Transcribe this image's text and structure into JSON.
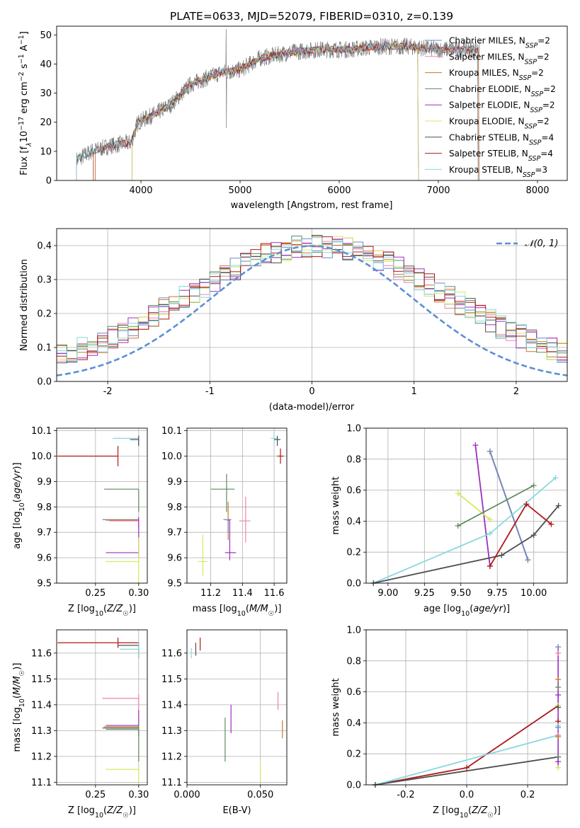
{
  "figure_title": "PLATE=0633, MJD=52079, FIBERID=0310, z=0.139",
  "palette": {
    "Chabrier MILES": "#6a8cc0",
    "Salpeter MILES": "#ef82ad",
    "Kroupa MILES": "#c87a28",
    "Chabrier ELODIE": "#5e8a5e",
    "Salpeter ELODIE": "#9b30c0",
    "Kroupa ELODIE": "#d8e860",
    "Chabrier STELIB": "#4f4f4f",
    "Salpeter STELIB": "#b01818",
    "Kroupa STELIB": "#88d8e0"
  },
  "chart_data": [
    {
      "id": "spectrum",
      "type": "line",
      "title": "PLATE=0633, MJD=52079, FIBERID=0310, z=0.139",
      "xlabel": "wavelength [Angstrom, rest frame]",
      "ylabel": "Flux [f_λ10^-17 erg cm^-2 s^-1 A^-1]",
      "xlim": [
        3150,
        8300
      ],
      "ylim": [
        0,
        53
      ],
      "xticks": [
        4000,
        5000,
        6000,
        7000,
        8000
      ],
      "yticks": [
        0,
        10,
        20,
        30,
        40,
        50
      ],
      "grid": false,
      "legend_position": "top-right",
      "legend": [
        "Chabrier MILES, N_SSP=2",
        "Salpeter MILES, N_SSP=2",
        "Kroupa MILES, N_SSP=2",
        "Chabrier ELODIE, N_SSP=2",
        "Salpeter ELODIE, N_SSP=2",
        "Kroupa ELODIE, N_SSP=2",
        "Chabrier STELIB, N_SSP=4",
        "Salpeter STELIB, N_SSP=4",
        "Kroupa STELIB, N_SSP=3"
      ],
      "continuum": [
        [
          3350,
          7
        ],
        [
          3500,
          10
        ],
        [
          3700,
          12
        ],
        [
          3900,
          13
        ],
        [
          3970,
          20
        ],
        [
          4150,
          23
        ],
        [
          4300,
          26
        ],
        [
          4500,
          33
        ],
        [
          4800,
          37
        ],
        [
          5000,
          38
        ],
        [
          5200,
          42
        ],
        [
          5500,
          44
        ],
        [
          5800,
          45
        ],
        [
          6100,
          45
        ],
        [
          6400,
          46
        ],
        [
          6700,
          46
        ],
        [
          7000,
          45
        ],
        [
          7400,
          45
        ]
      ],
      "model_ranges": {
        "Chabrier MILES": [
          3540,
          7410
        ],
        "Salpeter MILES": [
          3540,
          7410
        ],
        "Kroupa MILES": [
          3540,
          7410
        ],
        "Chabrier ELODIE": [
          3910,
          6800
        ],
        "Salpeter ELODIE": [
          3910,
          6800
        ],
        "Kroupa ELODIE": [
          3910,
          6800
        ],
        "Chabrier STELIB": [
          3350,
          7400
        ],
        "Salpeter STELIB": [
          3520,
          7400
        ],
        "Kroupa STELIB": [
          3350,
          7400
        ]
      }
    },
    {
      "id": "residuals",
      "type": "histogram",
      "xlabel": "(data-model)/error",
      "ylabel": "Normed distribution",
      "xlim": [
        -2.5,
        2.5
      ],
      "ylim": [
        0,
        0.45
      ],
      "xticks": [
        -2,
        -1,
        0,
        1,
        2
      ],
      "yticks": [
        0.0,
        0.1,
        0.2,
        0.3,
        0.4
      ],
      "grid": true,
      "legend": [
        "𝒩(0, 1)"
      ],
      "legend_position": "top-right"
    },
    {
      "id": "age_vs_Z",
      "type": "errorbar",
      "xlabel": "Z [log10(Z/Z☉)]",
      "ylabel": "age [log10(age/yr)]",
      "xlim": [
        0.205,
        0.31
      ],
      "ylim": [
        9.5,
        10.11
      ],
      "xticks": [
        0.25,
        0.3
      ],
      "yticks": [
        9.5,
        9.6,
        9.7,
        9.8,
        9.9,
        10.0,
        10.1
      ],
      "grid": true,
      "points": [
        {
          "model": "Salpeter STELIB",
          "x": 0.276,
          "y": 10.0,
          "xerr": [
            0.206,
            0.276
          ],
          "yerr": [
            9.96,
            10.04
          ]
        },
        {
          "model": "Kroupa STELIB",
          "x": 0.3,
          "y": 10.07,
          "xerr": [
            0.27,
            0.3
          ],
          "yerr": [
            10.04,
            10.08
          ]
        },
        {
          "model": "Chabrier STELIB",
          "x": 0.3,
          "y": 10.065,
          "xerr": [
            0.29,
            0.3
          ],
          "yerr": [
            10.04,
            10.08
          ]
        },
        {
          "model": "Chabrier ELODIE",
          "x": 0.3,
          "y": 9.87,
          "xerr": [
            0.26,
            0.3
          ],
          "yerr": [
            9.78,
            9.87
          ]
        },
        {
          "model": "Chabrier MILES",
          "x": 0.3,
          "y": 9.75,
          "xerr": [
            0.258,
            0.3
          ],
          "yerr": [
            9.72,
            9.75
          ]
        },
        {
          "model": "Kroupa MILES",
          "x": 0.3,
          "y": 9.748,
          "xerr": [
            0.262,
            0.3
          ],
          "yerr": [
            9.72,
            9.75
          ]
        },
        {
          "model": "Salpeter MILES",
          "x": 0.3,
          "y": 9.745,
          "xerr": [
            0.266,
            0.3
          ],
          "yerr": [
            9.72,
            9.75
          ]
        },
        {
          "model": "Salpeter ELODIE",
          "x": 0.3,
          "y": 9.62,
          "xerr": [
            0.262,
            0.3
          ],
          "yerr": [
            9.6,
            9.76
          ]
        },
        {
          "model": "Kroupa ELODIE",
          "x": 0.3,
          "y": 9.585,
          "xerr": [
            0.262,
            0.3
          ],
          "yerr": [
            9.5,
            9.68
          ]
        }
      ]
    },
    {
      "id": "age_vs_mass",
      "type": "errorbar",
      "xlabel": "mass [log10(M/M☉)]",
      "ylabel": "",
      "xlim": [
        11.05,
        11.68
      ],
      "ylim": [
        9.5,
        10.11
      ],
      "xticks": [
        11.2,
        11.4,
        11.6
      ],
      "yticks": [
        9.5,
        9.6,
        9.7,
        9.8,
        9.9,
        10.0,
        10.1
      ],
      "grid": true,
      "points": [
        {
          "model": "Salpeter STELIB",
          "x": 11.64,
          "y": 10.0,
          "xerr": [
            11.62,
            11.66
          ],
          "yerr": [
            9.97,
            10.03
          ]
        },
        {
          "model": "Kroupa STELIB",
          "x": 11.6,
          "y": 10.07,
          "xerr": [
            11.58,
            11.62
          ],
          "yerr": [
            10.05,
            10.09
          ]
        },
        {
          "model": "Chabrier STELIB",
          "x": 11.62,
          "y": 10.065,
          "xerr": [
            11.6,
            11.64
          ],
          "yerr": [
            10.04,
            10.08
          ]
        },
        {
          "model": "Chabrier ELODIE",
          "x": 11.3,
          "y": 9.87,
          "xerr": [
            11.2,
            11.35
          ],
          "yerr": [
            9.78,
            9.93
          ]
        },
        {
          "model": "Kroupa MILES",
          "x": 11.31,
          "y": 9.748,
          "xerr": [
            11.3,
            11.32
          ],
          "yerr": [
            9.67,
            9.82
          ]
        },
        {
          "model": "Chabrier MILES",
          "x": 11.31,
          "y": 9.75,
          "xerr": [
            11.28,
            11.33
          ],
          "yerr": [
            9.7,
            9.75
          ]
        },
        {
          "model": "Salpeter MILES",
          "x": 11.42,
          "y": 9.745,
          "xerr": [
            11.38,
            11.45
          ],
          "yerr": [
            9.66,
            9.84
          ]
        },
        {
          "model": "Salpeter ELODIE",
          "x": 11.32,
          "y": 9.62,
          "xerr": [
            11.29,
            11.36
          ],
          "yerr": [
            9.59,
            9.75
          ]
        },
        {
          "model": "Kroupa ELODIE",
          "x": 11.15,
          "y": 9.585,
          "xerr": [
            11.12,
            11.18
          ],
          "yerr": [
            9.53,
            9.69
          ]
        }
      ]
    },
    {
      "id": "weight_vs_age",
      "type": "line",
      "xlabel": "age [log10(age/yr)]",
      "ylabel": "mass weight",
      "xlim": [
        8.85,
        10.23
      ],
      "ylim": [
        0,
        1.0
      ],
      "xticks": [
        9.0,
        9.25,
        9.5,
        9.75,
        10.0
      ],
      "yticks": [
        0.0,
        0.2,
        0.4,
        0.6,
        0.8,
        1.0
      ],
      "grid": true,
      "series": [
        {
          "model": "Salpeter ELODIE",
          "x": [
            9.6,
            9.7
          ],
          "y": [
            0.89,
            0.11
          ]
        },
        {
          "model": "Kroupa MILES",
          "x": [
            9.7,
            9.96
          ],
          "y": [
            0.85,
            0.15
          ]
        },
        {
          "model": "Salpeter MILES",
          "x": [
            9.7,
            9.96
          ],
          "y": [
            0.85,
            0.15
          ]
        },
        {
          "model": "Chabrier MILES",
          "x": [
            9.7,
            9.96
          ],
          "y": [
            0.85,
            0.15
          ]
        },
        {
          "model": "Kroupa ELODIE",
          "x": [
            9.48,
            9.7
          ],
          "y": [
            0.58,
            0.41
          ]
        },
        {
          "model": "Chabrier ELODIE",
          "x": [
            9.48,
            10.0
          ],
          "y": [
            0.37,
            0.63
          ]
        },
        {
          "model": "Kroupa STELIB",
          "x": [
            8.9,
            9.7,
            10.15
          ],
          "y": [
            0.0,
            0.32,
            0.68
          ]
        },
        {
          "model": "Chabrier STELIB",
          "x": [
            8.9,
            9.78,
            10.0,
            10.17
          ],
          "y": [
            0.0,
            0.18,
            0.31,
            0.5
          ]
        },
        {
          "model": "Salpeter STELIB",
          "x": [
            9.7,
            9.95,
            10.12
          ],
          "y": [
            0.11,
            0.51,
            0.38
          ]
        }
      ]
    },
    {
      "id": "mass_vs_Z",
      "type": "errorbar",
      "xlabel": "Z [log10(Z/Z☉)]",
      "ylabel": "mass [log10(M/M☉)]",
      "xlim": [
        0.205,
        0.31
      ],
      "ylim": [
        11.09,
        11.69
      ],
      "xticks": [
        0.25,
        0.3
      ],
      "yticks": [
        11.1,
        11.2,
        11.3,
        11.4,
        11.5,
        11.6
      ],
      "grid": true,
      "points": [
        {
          "model": "Salpeter STELIB",
          "x": 0.276,
          "y": 11.64,
          "xerr": [
            0.206,
            0.3
          ],
          "yerr": [
            11.62,
            11.66
          ]
        },
        {
          "model": "Chabrier STELIB",
          "x": 0.3,
          "y": 11.63,
          "xerr": [
            0.276,
            0.3
          ],
          "yerr": [
            11.58,
            11.64
          ]
        },
        {
          "model": "Kroupa STELIB",
          "x": 0.3,
          "y": 11.615,
          "xerr": [
            0.278,
            0.3
          ],
          "yerr": [
            11.58,
            11.64
          ]
        },
        {
          "model": "Salpeter MILES",
          "x": 0.3,
          "y": 11.425,
          "xerr": [
            0.258,
            0.3
          ],
          "yerr": [
            11.38,
            11.44
          ]
        },
        {
          "model": "Salpeter ELODIE",
          "x": 0.3,
          "y": 11.32,
          "xerr": [
            0.262,
            0.3
          ],
          "yerr": [
            11.29,
            11.38
          ]
        },
        {
          "model": "Chabrier STELIB",
          "x": 0.3,
          "y": 11.31,
          "xerr": [
            0.258,
            0.3
          ],
          "yerr": [
            11.28,
            11.33
          ]
        },
        {
          "model": "Kroupa MILES",
          "x": 0.3,
          "y": 11.315,
          "xerr": [
            0.26,
            0.3
          ],
          "yerr": [
            11.28,
            11.33
          ]
        },
        {
          "model": "Chabrier ELODIE",
          "x": 0.3,
          "y": 11.305,
          "xerr": [
            0.262,
            0.3
          ],
          "yerr": [
            11.18,
            11.33
          ]
        },
        {
          "model": "Kroupa ELODIE",
          "x": 0.3,
          "y": 11.15,
          "xerr": [
            0.262,
            0.3
          ],
          "yerr": [
            11.1,
            11.16
          ]
        }
      ]
    },
    {
      "id": "mass_vs_ebv",
      "type": "errorbar",
      "xlabel": "E(B-V)",
      "ylabel": "",
      "xlim": [
        0.0,
        0.068
      ],
      "ylim": [
        11.09,
        11.69
      ],
      "xticks": [
        0.0,
        0.05
      ],
      "xticklabels": [
        "0.000",
        "0.050"
      ],
      "yticks": [
        11.1,
        11.2,
        11.3,
        11.4,
        11.5,
        11.6
      ],
      "grid": true,
      "points": [
        {
          "model": "Kroupa STELIB",
          "x": 0.003,
          "y": 11.595,
          "yerr": [
            11.58,
            11.62
          ]
        },
        {
          "model": "Chabrier STELIB",
          "x": 0.006,
          "y": 11.615,
          "yerr": [
            11.59,
            11.64
          ]
        },
        {
          "model": "Salpeter STELIB",
          "x": 0.009,
          "y": 11.635,
          "yerr": [
            11.61,
            11.66
          ]
        },
        {
          "model": "Chabrier ELODIE",
          "x": 0.026,
          "y": 11.27,
          "yerr": [
            11.18,
            11.35
          ]
        },
        {
          "model": "Salpeter ELODIE",
          "x": 0.03,
          "y": 11.34,
          "yerr": [
            11.29,
            11.4
          ]
        },
        {
          "model": "Kroupa ELODIE",
          "x": 0.05,
          "y": 11.14,
          "yerr": [
            11.1,
            11.18
          ]
        },
        {
          "model": "Salpeter MILES",
          "x": 0.062,
          "y": 11.415,
          "yerr": [
            11.38,
            11.45
          ]
        },
        {
          "model": "Kroupa MILES",
          "x": 0.065,
          "y": 11.3,
          "yerr": [
            11.27,
            11.34
          ]
        }
      ]
    },
    {
      "id": "weight_vs_Z",
      "type": "line",
      "xlabel": "Z [log10(Z/Z☉)]",
      "ylabel": "mass weight",
      "xlim": [
        -0.33,
        0.33
      ],
      "ylim": [
        0,
        1.0
      ],
      "xticks": [
        -0.2,
        0.0,
        0.2
      ],
      "yticks": [
        0.0,
        0.2,
        0.4,
        0.6,
        0.8,
        1.0
      ],
      "grid": true,
      "series": [
        {
          "model": "Salpeter STELIB",
          "x": [
            -0.3,
            0.0,
            0.3
          ],
          "y": [
            0.0,
            0.11,
            0.51
          ]
        },
        {
          "model": "Kroupa STELIB",
          "x": [
            -0.3,
            0.3
          ],
          "y": [
            0.0,
            0.32
          ]
        },
        {
          "model": "Chabrier STELIB",
          "x": [
            -0.3,
            0.3
          ],
          "y": [
            0.0,
            0.18
          ]
        }
      ],
      "marker_columns_x": 0.3,
      "marker_values": [
        0.89,
        0.85,
        0.68,
        0.63,
        0.58,
        0.51,
        0.5,
        0.41,
        0.38,
        0.37,
        0.32,
        0.31,
        0.18,
        0.15,
        0.11
      ]
    }
  ]
}
